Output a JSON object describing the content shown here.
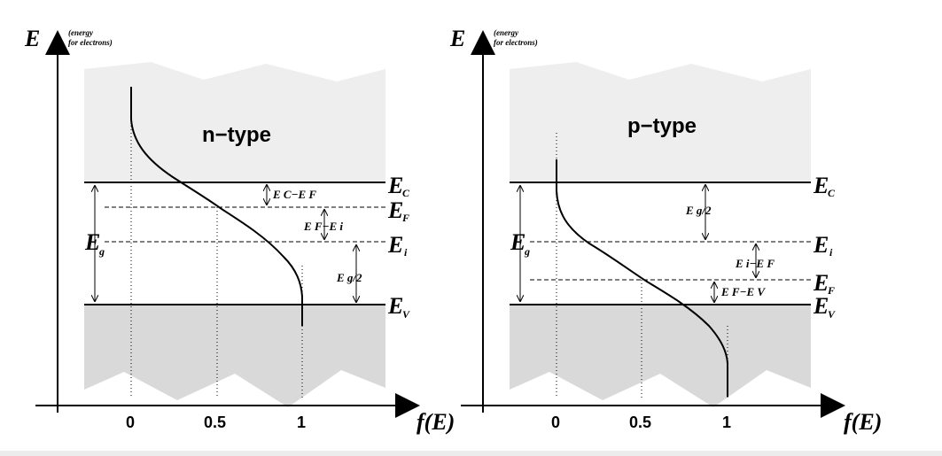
{
  "left": {
    "y_axis_symbol": "E",
    "y_axis_note_line1": "(energy",
    "y_axis_note_line2": "for electrons)",
    "region_title": "n−type",
    "level_labels": {
      "ec": "E",
      "ec_sub": "C",
      "ef": "E",
      "ef_sub": "F",
      "ei": "E",
      "ei_sub": "i",
      "ev": "E",
      "ev_sub": "V"
    },
    "gap_label": "E",
    "gap_label_sub": "g",
    "annotations": {
      "ec_minus_ef": "E C−E F",
      "ef_minus_ei": "E F−E i",
      "eg_half": "E g/2"
    },
    "x_ticks": [
      "0",
      "0.5",
      "1"
    ],
    "x_axis_label": "f(E)"
  },
  "right": {
    "y_axis_symbol": "E",
    "y_axis_note_line1": "(energy",
    "y_axis_note_line2": "for electrons)",
    "region_title": "p−type",
    "level_labels": {
      "ec": "E",
      "ec_sub": "C",
      "ef": "E",
      "ef_sub": "F",
      "ei": "E",
      "ei_sub": "i",
      "ev": "E",
      "ev_sub": "V"
    },
    "gap_label": "E",
    "gap_label_sub": "g",
    "annotations": {
      "eg_half": "E g/2",
      "ei_minus_ef": "E i−E F",
      "ef_minus_ev": "E F−E V"
    },
    "x_ticks": [
      "0",
      "0.5",
      "1"
    ],
    "x_axis_label": "f(E)"
  },
  "colors": {
    "band": "#eeeeee",
    "band_dark": "#d9d9d9",
    "line": "#000000"
  }
}
